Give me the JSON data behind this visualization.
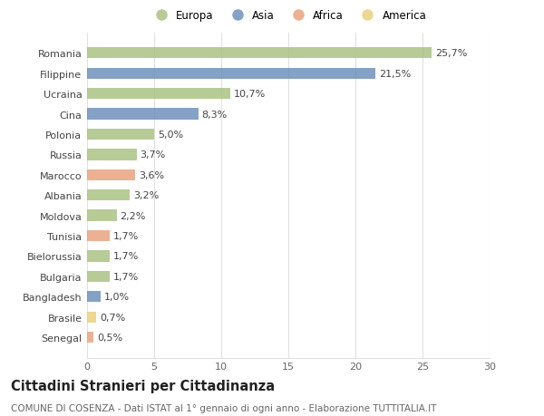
{
  "countries": [
    "Romania",
    "Filippine",
    "Ucraina",
    "Cina",
    "Polonia",
    "Russia",
    "Marocco",
    "Albania",
    "Moldova",
    "Tunisia",
    "Bielorussia",
    "Bulgaria",
    "Bangladesh",
    "Brasile",
    "Senegal"
  ],
  "values": [
    25.7,
    21.5,
    10.7,
    8.3,
    5.0,
    3.7,
    3.6,
    3.2,
    2.2,
    1.7,
    1.7,
    1.7,
    1.0,
    0.7,
    0.5
  ],
  "labels": [
    "25,7%",
    "21,5%",
    "10,7%",
    "8,3%",
    "5,0%",
    "3,7%",
    "3,6%",
    "3,2%",
    "2,2%",
    "1,7%",
    "1,7%",
    "1,7%",
    "1,0%",
    "0,7%",
    "0,5%"
  ],
  "continents": [
    "Europa",
    "Asia",
    "Europa",
    "Asia",
    "Europa",
    "Europa",
    "Africa",
    "Europa",
    "Europa",
    "Africa",
    "Europa",
    "Europa",
    "Asia",
    "America",
    "Africa"
  ],
  "colors": {
    "Europa": "#a8c080",
    "Asia": "#6b8cba",
    "Africa": "#e8a07a",
    "America": "#e8d07a"
  },
  "legend_order": [
    "Europa",
    "Asia",
    "Africa",
    "America"
  ],
  "xlim": [
    0,
    30
  ],
  "xticks": [
    0,
    5,
    10,
    15,
    20,
    25,
    30
  ],
  "title": "Cittadini Stranieri per Cittadinanza",
  "subtitle": "COMUNE DI COSENZA - Dati ISTAT al 1° gennaio di ogni anno - Elaborazione TUTTITALIA.IT",
  "bg_color": "#ffffff",
  "grid_color": "#e0e0e0",
  "bar_alpha": 0.82,
  "label_fontsize": 8.0,
  "title_fontsize": 10.5,
  "subtitle_fontsize": 7.5
}
